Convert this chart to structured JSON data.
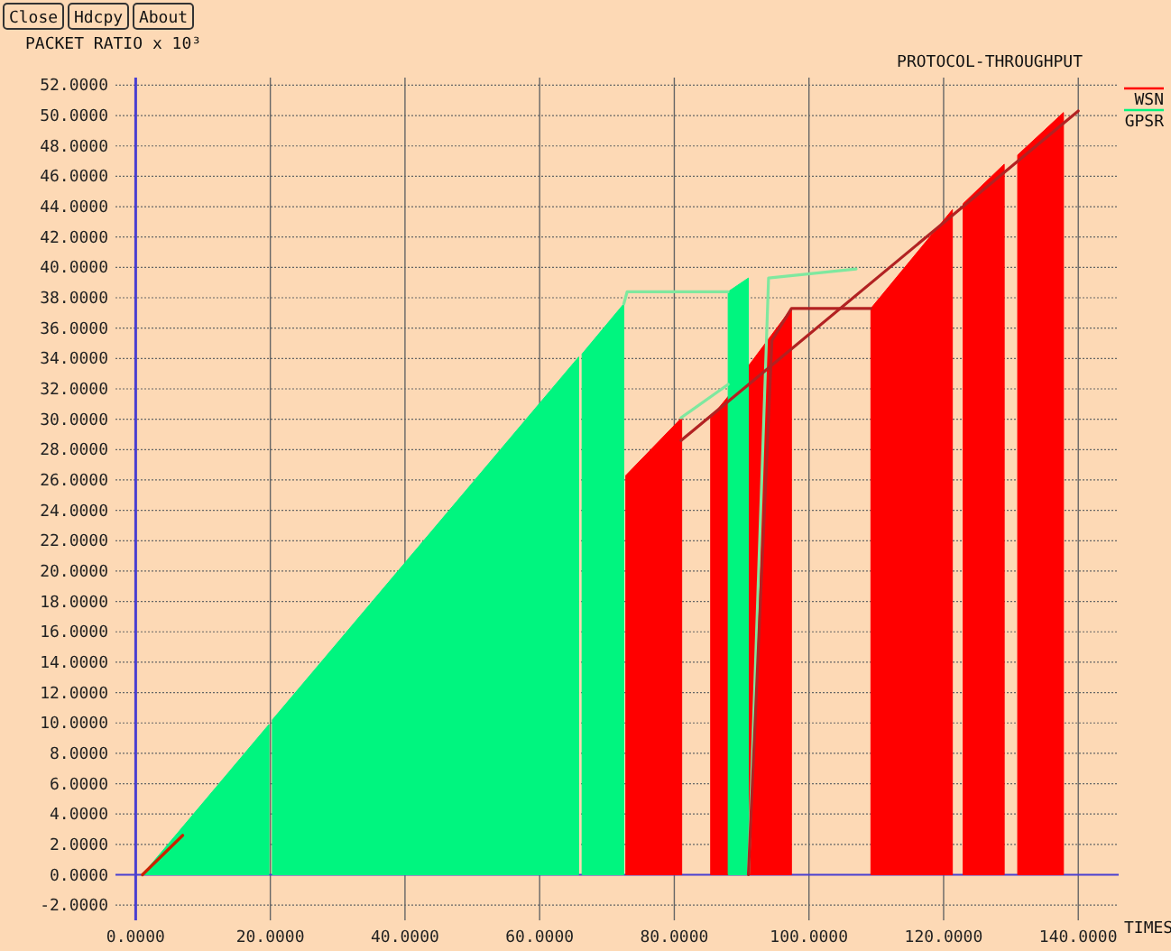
{
  "chart_data": {
    "type": "area",
    "title": "PROTOCOL-THROUGHPUT",
    "ylabel": "PACKET RATIO x 10³",
    "xlabel": "TIMES",
    "annotations": [
      "Close",
      "Hdcpy",
      "About"
    ],
    "xlim": [
      -3,
      146
    ],
    "ylim": [
      -3,
      52.5
    ],
    "xticks": [
      {
        "value": 0,
        "label": "0.0000"
      },
      {
        "value": 20,
        "label": "20.0000"
      },
      {
        "value": 40,
        "label": "40.0000"
      },
      {
        "value": 60,
        "label": "60.0000"
      },
      {
        "value": 80,
        "label": "80.0000"
      },
      {
        "value": 100,
        "label": "100.0000"
      },
      {
        "value": 120,
        "label": "120.0000"
      },
      {
        "value": 140,
        "label": "140.0000"
      }
    ],
    "yticks": [
      {
        "value": -2,
        "label": "-2.0000"
      },
      {
        "value": 0,
        "label": "0.0000"
      },
      {
        "value": 2,
        "label": "2.0000"
      },
      {
        "value": 4,
        "label": "4.0000"
      },
      {
        "value": 6,
        "label": "6.0000"
      },
      {
        "value": 8,
        "label": "8.0000"
      },
      {
        "value": 10,
        "label": "10.0000"
      },
      {
        "value": 12,
        "label": "12.0000"
      },
      {
        "value": 14,
        "label": "14.0000"
      },
      {
        "value": 16,
        "label": "16.0000"
      },
      {
        "value": 18,
        "label": "18.0000"
      },
      {
        "value": 20,
        "label": "20.0000"
      },
      {
        "value": 22,
        "label": "22.0000"
      },
      {
        "value": 24,
        "label": "24.0000"
      },
      {
        "value": 26,
        "label": "26.0000"
      },
      {
        "value": 28,
        "label": "28.0000"
      },
      {
        "value": 30,
        "label": "30.0000"
      },
      {
        "value": 32,
        "label": "32.0000"
      },
      {
        "value": 34,
        "label": "34.0000"
      },
      {
        "value": 36,
        "label": "36.0000"
      },
      {
        "value": 38,
        "label": "38.0000"
      },
      {
        "value": 40,
        "label": "40.0000"
      },
      {
        "value": 42,
        "label": "42.0000"
      },
      {
        "value": 44,
        "label": "44.0000"
      },
      {
        "value": 46,
        "label": "46.0000"
      },
      {
        "value": 48,
        "label": "48.0000"
      },
      {
        "value": 50,
        "label": "50.0000"
      },
      {
        "value": 52,
        "label": "52.0000"
      }
    ],
    "grid": true,
    "legend": "right",
    "ref_lines": [
      {
        "axis": "y",
        "value": 0,
        "color": "#4a3fd0"
      }
    ],
    "series": [
      {
        "name": "WSN",
        "color": "#ff0000",
        "x": [
          72.8,
          81.1,
          81.5,
          85.4,
          88,
          88.5,
          91,
          97.4,
          98,
          109.2,
          121.3,
          122,
          122.9,
          129,
          130,
          131,
          137.8
        ],
        "values": [
          26.3,
          30.1,
          null,
          30.1,
          31.5,
          null,
          33.5,
          37.3,
          null,
          37.3,
          43.8,
          null,
          44.2,
          46.8,
          null,
          47.4,
          50.2
        ]
      },
      {
        "name": "GPSR",
        "color": "#00f57f",
        "x": [
          1,
          19.8,
          19.9,
          20.3,
          65.8,
          65.9,
          66.3,
          72.5,
          73,
          88,
          91
        ],
        "values": [
          0,
          9.9,
          null,
          10.2,
          34.1,
          null,
          34.3,
          37.6,
          null,
          38.4,
          39.3
        ]
      },
      {
        "type": "line",
        "color": "#7fe89f",
        "x": [
          72.5,
          73,
          88
        ],
        "values": [
          37.6,
          38.4,
          38.4
        ]
      },
      {
        "type": "line",
        "color": "#7fe89f",
        "x": [
          91,
          94,
          107
        ],
        "values": [
          0,
          39.3,
          39.9
        ]
      },
      {
        "type": "line",
        "color": "#7fe89f",
        "x": [
          81,
          88
        ],
        "values": [
          30.1,
          32.3
        ]
      },
      {
        "type": "line",
        "color": "#b22222",
        "x": [
          81,
          140
        ],
        "values": [
          28.6,
          50.3
        ]
      },
      {
        "type": "line",
        "color": "#b22222",
        "x": [
          91,
          94.5,
          97.4,
          109.2
        ],
        "values": [
          0,
          35.2,
          37.3,
          37.3
        ]
      },
      {
        "type": "line",
        "color": "#cc2200",
        "x": [
          1,
          7
        ],
        "values": [
          0,
          2.6
        ]
      }
    ]
  }
}
